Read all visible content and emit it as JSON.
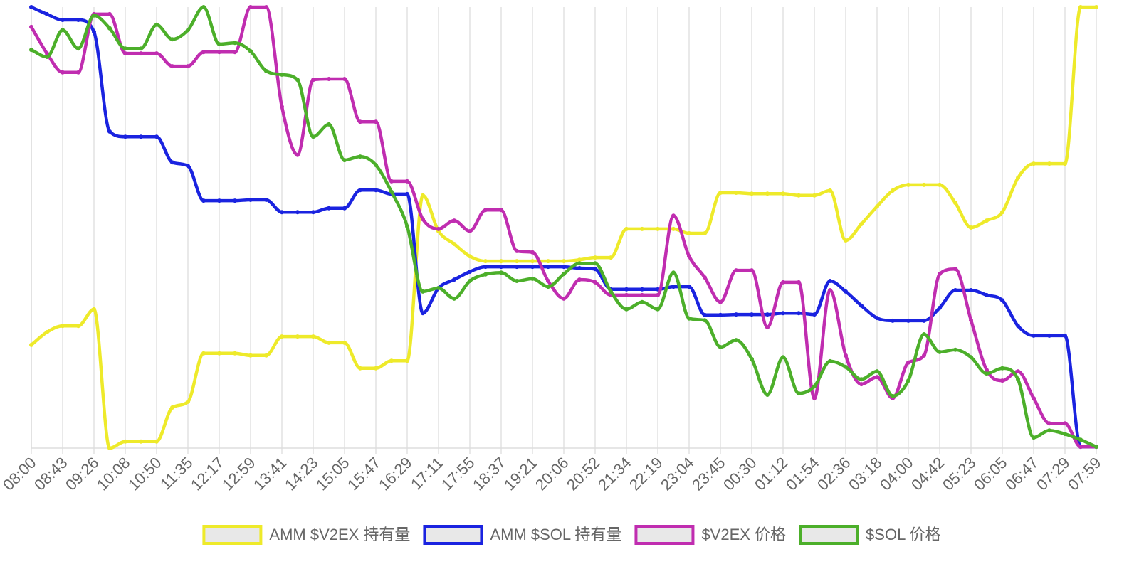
{
  "chart_data": {
    "type": "line",
    "categories": [
      "08:00",
      null,
      "08:43",
      null,
      "09:26",
      null,
      "10:08",
      null,
      "10:50",
      null,
      "11:35",
      null,
      "12:17",
      null,
      "12:59",
      null,
      "13:41",
      null,
      "14:23",
      null,
      "15:05",
      null,
      "15:47",
      null,
      "16:29",
      null,
      "17:11",
      null,
      "17:55",
      null,
      "18:37",
      null,
      "19:21",
      null,
      "20:06",
      null,
      "20:52",
      null,
      "21:34",
      null,
      "22:19",
      null,
      "23:04",
      null,
      "23:45",
      null,
      "00:30",
      null,
      "01:12",
      null,
      "01:54",
      null,
      "02:36",
      null,
      "03:18",
      null,
      "04:00",
      null,
      "04:42",
      null,
      "05:23",
      null,
      "06:05",
      null,
      "06:47",
      null,
      "07:29",
      null,
      "07:59"
    ],
    "ylim": [
      0,
      100
    ],
    "grid": true,
    "legend": "bottom",
    "series": [
      {
        "name": "AMM $V2EX 持有量",
        "color": "#eeea2a",
        "values": [
          23.4,
          26.3,
          27.7,
          27.7,
          31.5,
          0,
          1.5,
          1.5,
          1.5,
          9.2,
          10.5,
          21.5,
          21.5,
          21.5,
          21,
          21,
          25.3,
          25.3,
          25.3,
          23.9,
          23.9,
          18.1,
          18.1,
          19.8,
          19.8,
          57.3,
          49.2,
          46.3,
          43.5,
          42.4,
          42.4,
          42.4,
          42.4,
          42.4,
          42.4,
          42.7,
          43.2,
          43.2,
          49.7,
          49.7,
          49.7,
          49.7,
          48.7,
          48.7,
          57.9,
          57.9,
          57.7,
          57.7,
          57.7,
          57.3,
          57.3,
          58.4,
          47.1,
          50.8,
          54.8,
          58.4,
          59.7,
          59.7,
          59.7,
          55.6,
          50,
          51.6,
          53.5,
          61.3,
          64.5,
          64.5,
          64.5,
          100,
          100
        ]
      },
      {
        "name": "AMM $SOL 持有量",
        "color": "#1a23e0",
        "values": [
          100,
          98.4,
          97.1,
          97.1,
          94.4,
          71.8,
          70.6,
          70.6,
          70.6,
          64.8,
          64,
          56.1,
          56.1,
          56.1,
          56.3,
          56.3,
          53.5,
          53.5,
          53.5,
          54.4,
          54.4,
          58.5,
          58.5,
          57.6,
          57.6,
          30.6,
          36.3,
          38.2,
          40,
          41.1,
          41.1,
          41.1,
          41.1,
          41.1,
          41.1,
          40.8,
          40.6,
          36,
          36,
          36,
          36,
          36.6,
          36.6,
          30.2,
          30.2,
          30.3,
          30.3,
          30.3,
          30.6,
          30.6,
          30.3,
          37.9,
          35.5,
          32.3,
          29.5,
          28.9,
          28.9,
          28.9,
          31.8,
          35.8,
          35.8,
          34.7,
          33.5,
          27.7,
          25.5,
          25.5,
          25.5,
          0.3,
          0.3
        ]
      },
      {
        "name": "$V2EX 价格",
        "color": "#c02db0",
        "values": [
          95.5,
          89.5,
          85.2,
          85.2,
          98.4,
          98.4,
          89.5,
          89.5,
          89.5,
          86.6,
          86.6,
          89.8,
          89.8,
          89.8,
          100,
          100,
          77.4,
          66.5,
          83.5,
          83.7,
          83.7,
          74,
          74,
          60.5,
          60.5,
          51.9,
          49.7,
          51.6,
          49.2,
          54,
          54,
          44.7,
          44.4,
          37.9,
          33.9,
          38.2,
          37.6,
          34.7,
          34.7,
          34.7,
          34.7,
          52.7,
          43.5,
          38.7,
          33.1,
          40.3,
          40.3,
          27.4,
          37.6,
          37.6,
          11.3,
          35.8,
          21,
          14.5,
          16.1,
          11.3,
          19.4,
          21,
          39.5,
          40.6,
          29,
          17.7,
          15.3,
          17.4,
          11.3,
          5.6,
          5.6,
          0.3,
          0.3
        ]
      },
      {
        "name": "$SOL 价格",
        "color": "#4caf2a",
        "values": [
          90.3,
          88.7,
          94.8,
          90.6,
          98.1,
          95.2,
          90.6,
          90.6,
          96,
          92.7,
          94.8,
          100,
          91.6,
          91.9,
          90,
          85.5,
          84.7,
          83.5,
          70.6,
          73.4,
          65.3,
          66.1,
          64.2,
          58.1,
          50.3,
          35.5,
          36.3,
          33.9,
          37.9,
          39.4,
          39.8,
          37.9,
          38.4,
          36.6,
          39.5,
          41.9,
          41.9,
          35.5,
          31.5,
          33.1,
          31.5,
          39.8,
          29.4,
          29,
          22.9,
          24.5,
          20.2,
          12.1,
          20.6,
          12.4,
          14,
          19.7,
          18.4,
          15.6,
          17.4,
          11.8,
          15.3,
          25.8,
          21.8,
          22.3,
          20.6,
          16.9,
          18.1,
          15.6,
          2.4,
          4,
          3.2,
          1.9,
          0.3
        ]
      }
    ]
  }
}
